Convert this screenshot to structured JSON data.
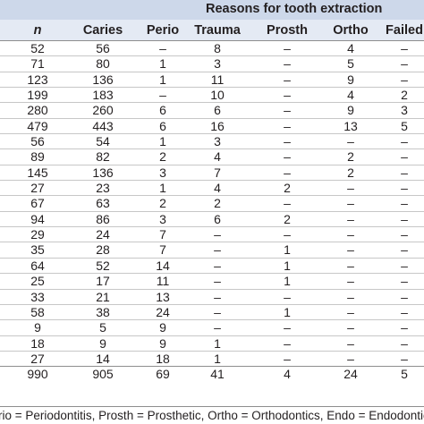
{
  "table": {
    "group_title": "Reasons for tooth extraction",
    "columns": [
      "n",
      "Caries",
      "Perio",
      "Trauma",
      "Prosth",
      "Ortho",
      "Failed"
    ],
    "rows": [
      [
        "52",
        "56",
        "–",
        "8",
        "–",
        "4",
        "–"
      ],
      [
        "71",
        "80",
        "1",
        "3",
        "–",
        "5",
        "–"
      ],
      [
        "123",
        "136",
        "1",
        "11",
        "–",
        "9",
        "–"
      ],
      [
        "199",
        "183",
        "–",
        "10",
        "–",
        "4",
        "2"
      ],
      [
        "280",
        "260",
        "6",
        "6",
        "–",
        "9",
        "3"
      ],
      [
        "479",
        "443",
        "6",
        "16",
        "–",
        "13",
        "5"
      ],
      [
        "56",
        "54",
        "1",
        "3",
        "–",
        "–",
        "–"
      ],
      [
        "89",
        "82",
        "2",
        "4",
        "–",
        "2",
        "–"
      ],
      [
        "145",
        "136",
        "3",
        "7",
        "–",
        "2",
        "–"
      ],
      [
        "27",
        "23",
        "1",
        "4",
        "2",
        "–",
        "–"
      ],
      [
        "67",
        "63",
        "2",
        "2",
        "–",
        "–",
        "–"
      ],
      [
        "94",
        "86",
        "3",
        "6",
        "2",
        "–",
        "–"
      ],
      [
        "29",
        "24",
        "7",
        "–",
        "–",
        "–",
        "–"
      ],
      [
        "35",
        "28",
        "7",
        "–",
        "1",
        "–",
        "–"
      ],
      [
        "64",
        "52",
        "14",
        "–",
        "1",
        "–",
        "–"
      ],
      [
        "25",
        "17",
        "11",
        "–",
        "1",
        "–",
        "–"
      ],
      [
        "33",
        "21",
        "13",
        "–",
        "–",
        "–",
        "–"
      ],
      [
        "58",
        "38",
        "24",
        "–",
        "1",
        "–",
        "–"
      ],
      [
        "9",
        "5",
        "9",
        "–",
        "–",
        "–",
        "–"
      ],
      [
        "18",
        "9",
        "9",
        "1",
        "–",
        "–",
        "–"
      ],
      [
        "27",
        "14",
        "18",
        "1",
        "–",
        "–",
        "–"
      ],
      [
        "990",
        "905",
        "69",
        "41",
        "4",
        "24",
        "5"
      ]
    ],
    "footnote": "rio = Periodontitis, Prosth = Prosthetic, Ortho = Orthodontics, Endo = Endodontics, F"
  }
}
